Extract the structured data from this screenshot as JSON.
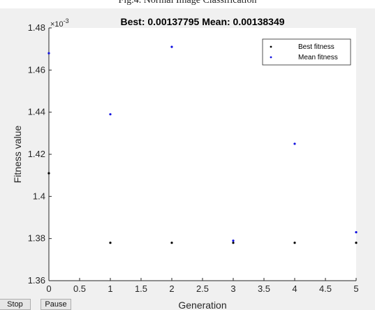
{
  "caption": "Fig.4. Normal Image Classification",
  "controls": {
    "stop_label": "Stop",
    "pause_label": "Pause"
  },
  "chart_data": {
    "type": "scatter",
    "title": "Best: 0.00137795 Mean: 0.00138349",
    "xlabel": "Generation",
    "ylabel": "Fitness value",
    "y_exponent_label": "×10",
    "y_exponent_power": "-3",
    "xlim": [
      0,
      5
    ],
    "ylim": [
      1.36,
      1.48
    ],
    "y_scale_note": "values shown in units of 10^-3",
    "xticks": [
      0,
      0.5,
      1,
      1.5,
      2,
      2.5,
      3,
      3.5,
      4,
      4.5,
      5
    ],
    "yticks": [
      1.36,
      1.38,
      1.4,
      1.42,
      1.44,
      1.46,
      1.48
    ],
    "xtick_labels": [
      "0",
      "0.5",
      "1",
      "1.5",
      "2",
      "2.5",
      "3",
      "3.5",
      "4",
      "4.5",
      "5"
    ],
    "ytick_labels": [
      "1.36",
      "1.38",
      "1.4",
      "1.42",
      "1.44",
      "1.46",
      "1.48"
    ],
    "legend_position": "top-right",
    "series": [
      {
        "name": "Best fitness",
        "color": "#000000",
        "x": [
          0,
          1,
          2,
          3,
          4,
          5
        ],
        "y": [
          1.411,
          1.378,
          1.378,
          1.378,
          1.378,
          1.378
        ]
      },
      {
        "name": "Mean fitness",
        "color": "#1010e0",
        "x": [
          0,
          1,
          2,
          3,
          4,
          5
        ],
        "y": [
          1.468,
          1.439,
          1.471,
          1.379,
          1.425,
          1.383
        ]
      }
    ]
  }
}
